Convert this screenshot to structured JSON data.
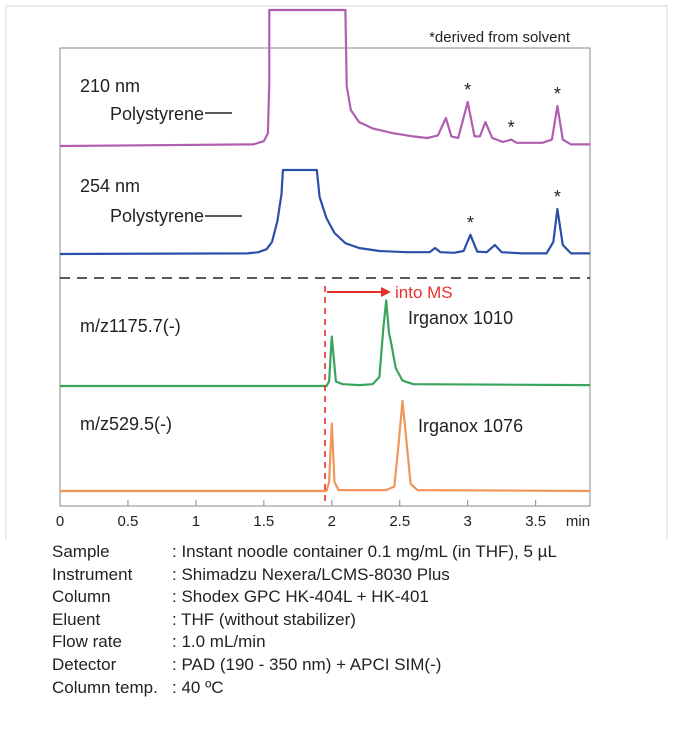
{
  "note": "*derived from solvent",
  "chart_data": {
    "type": "line",
    "xlabel": "min",
    "xlim": [
      0,
      3.9
    ],
    "xticks": [
      "0",
      "0.5",
      "1",
      "1.5",
      "2",
      "2.5",
      "3",
      "3.5"
    ],
    "divider_style": "dashed",
    "ms_marker": {
      "x": 1.95,
      "label": "into MS",
      "color": "#e8302a"
    },
    "traces": [
      {
        "name": "210 nm",
        "color": "#b05fb0",
        "label_a": "210 nm",
        "label_b": "Polystyrene",
        "points": [
          [
            0,
            0
          ],
          [
            1.42,
            0.02
          ],
          [
            1.5,
            0.06
          ],
          [
            1.53,
            0.16
          ],
          [
            1.54,
            0.8
          ],
          [
            1.54,
            1.7
          ],
          [
            2.1,
            1.7
          ],
          [
            2.11,
            0.75
          ],
          [
            2.14,
            0.45
          ],
          [
            2.2,
            0.3
          ],
          [
            2.3,
            0.22
          ],
          [
            2.45,
            0.16
          ],
          [
            2.6,
            0.12
          ],
          [
            2.7,
            0.1
          ],
          [
            2.78,
            0.13
          ],
          [
            2.84,
            0.35
          ],
          [
            2.88,
            0.12
          ],
          [
            2.93,
            0.1
          ],
          [
            3.0,
            0.55
          ],
          [
            3.05,
            0.12
          ],
          [
            3.09,
            0.12
          ],
          [
            3.13,
            0.3
          ],
          [
            3.18,
            0.1
          ],
          [
            3.26,
            0.05
          ],
          [
            3.32,
            0.08
          ],
          [
            3.36,
            0.04
          ],
          [
            3.55,
            0.04
          ],
          [
            3.62,
            0.08
          ],
          [
            3.66,
            0.5
          ],
          [
            3.7,
            0.08
          ],
          [
            3.76,
            0.02
          ],
          [
            3.9,
            0.02
          ]
        ],
        "asterisks": [
          3.0,
          3.32,
          3.66
        ]
      },
      {
        "name": "254 nm",
        "color": "#2b4fa8",
        "label_a": "254 nm",
        "label_b": "Polystyrene",
        "points": [
          [
            0,
            0
          ],
          [
            1.38,
            0.01
          ],
          [
            1.46,
            0.03
          ],
          [
            1.52,
            0.08
          ],
          [
            1.56,
            0.2
          ],
          [
            1.6,
            0.55
          ],
          [
            1.63,
            1.0
          ],
          [
            1.64,
            1.4
          ],
          [
            1.89,
            1.4
          ],
          [
            1.91,
            0.95
          ],
          [
            1.96,
            0.6
          ],
          [
            2.02,
            0.35
          ],
          [
            2.1,
            0.18
          ],
          [
            2.2,
            0.1
          ],
          [
            2.35,
            0.05
          ],
          [
            2.55,
            0.03
          ],
          [
            2.72,
            0.03
          ],
          [
            2.76,
            0.1
          ],
          [
            2.8,
            0.03
          ],
          [
            2.9,
            0.02
          ],
          [
            2.97,
            0.05
          ],
          [
            3.02,
            0.32
          ],
          [
            3.07,
            0.04
          ],
          [
            3.14,
            0.03
          ],
          [
            3.2,
            0.15
          ],
          [
            3.25,
            0.03
          ],
          [
            3.4,
            0.01
          ],
          [
            3.58,
            0.01
          ],
          [
            3.63,
            0.2
          ],
          [
            3.66,
            0.75
          ],
          [
            3.7,
            0.15
          ],
          [
            3.76,
            0.01
          ],
          [
            3.9,
            0.01
          ]
        ],
        "asterisks": [
          3.02,
          3.66
        ]
      },
      {
        "name": "m/z1175.7(-)",
        "color": "#3aa45c",
        "label_a": "m/z1175.7(-)",
        "label_b": "Irganox 1010",
        "points": [
          [
            0,
            0
          ],
          [
            1.96,
            0
          ],
          [
            1.98,
            0.05
          ],
          [
            2.0,
            0.55
          ],
          [
            2.03,
            0.05
          ],
          [
            2.08,
            0.02
          ],
          [
            2.2,
            0.01
          ],
          [
            2.3,
            0.02
          ],
          [
            2.35,
            0.1
          ],
          [
            2.38,
            0.65
          ],
          [
            2.4,
            0.95
          ],
          [
            2.42,
            0.6
          ],
          [
            2.44,
            0.45
          ],
          [
            2.47,
            0.2
          ],
          [
            2.52,
            0.06
          ],
          [
            2.6,
            0.02
          ],
          [
            3.9,
            0.01
          ]
        ],
        "asterisks": []
      },
      {
        "name": "m/z529.5(-)",
        "color": "#f0965a",
        "label_a": "m/z529.5(-)",
        "label_b": "Irganox 1076",
        "points": [
          [
            0,
            0
          ],
          [
            1.96,
            0
          ],
          [
            1.98,
            0.1
          ],
          [
            2.0,
            0.75
          ],
          [
            2.02,
            0.1
          ],
          [
            2.05,
            0.01
          ],
          [
            2.4,
            0.01
          ],
          [
            2.46,
            0.05
          ],
          [
            2.49,
            0.5
          ],
          [
            2.52,
            1.0
          ],
          [
            2.55,
            0.55
          ],
          [
            2.58,
            0.08
          ],
          [
            2.63,
            0.01
          ],
          [
            3.9,
            0.0
          ]
        ],
        "asterisks": []
      }
    ]
  },
  "conditions": [
    {
      "label": "Sample",
      "value": ": Instant noodle container 0.1 mg/mL (in THF), 5 µL"
    },
    {
      "label": "Instrument",
      "value": ": Shimadzu Nexera/LCMS-8030 Plus"
    },
    {
      "label": "Column",
      "value": ": Shodex GPC HK-404L + HK-401"
    },
    {
      "label": "Eluent",
      "value": ": THF (without stabilizer)"
    },
    {
      "label": "Flow rate",
      "value": ": 1.0 mL/min"
    },
    {
      "label": "Detector",
      "value": ": PAD (190 - 350 nm) + APCI SIM(-)"
    },
    {
      "label": "Column temp.",
      "value": ": 40 ºC"
    }
  ]
}
